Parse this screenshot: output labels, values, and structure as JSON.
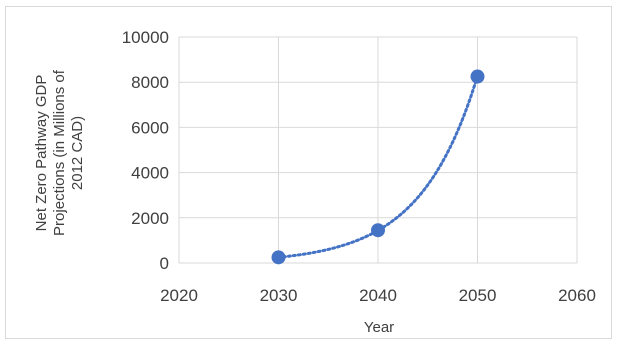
{
  "chart_data": {
    "type": "scatter",
    "xlabel": "Year",
    "ylabel_lines": [
      "Net Zero Pathway GDP",
      "Projections (in Millions of",
      "2012 CAD)"
    ],
    "xlim": [
      2020,
      2060
    ],
    "ylim": [
      0,
      10000
    ],
    "x_ticks": [
      "2020",
      "2030",
      "2040",
      "2050",
      "2060"
    ],
    "y_ticks": [
      "0",
      "2000",
      "4000",
      "6000",
      "8000",
      "10000"
    ],
    "grid": true,
    "series": [
      {
        "x": [
          2030,
          2040,
          2050
        ],
        "y": [
          250,
          1450,
          8250
        ],
        "color": "#4472c4",
        "trendline": "exponential, dotted"
      }
    ]
  }
}
